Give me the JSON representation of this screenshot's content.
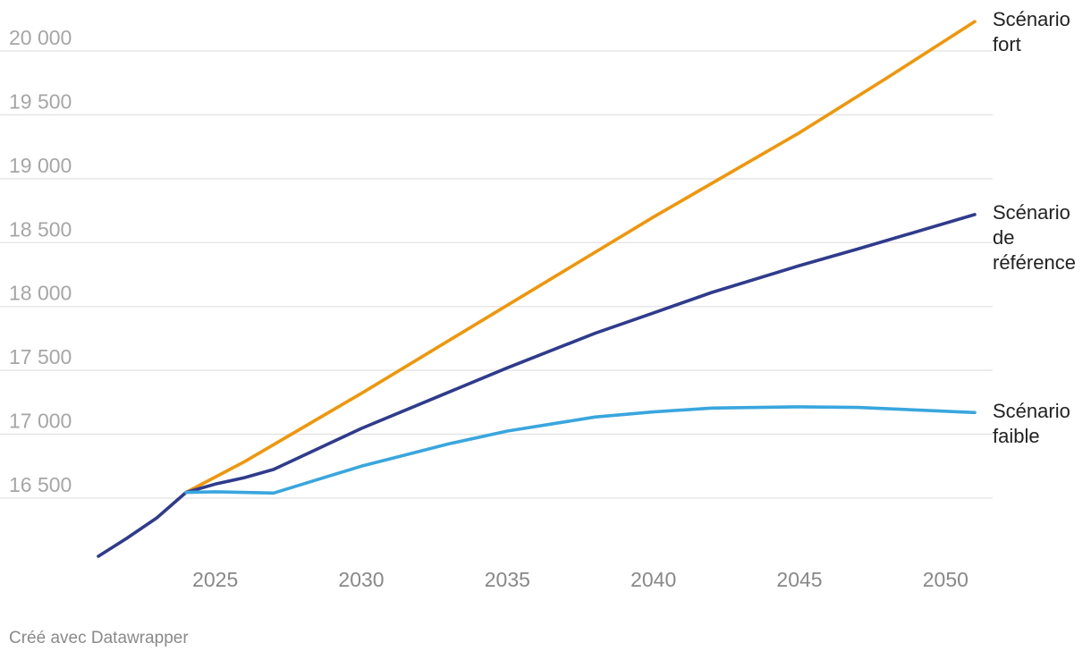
{
  "chart_data": {
    "type": "line",
    "title": "",
    "xlabel": "",
    "ylabel": "",
    "xlim": [
      2021,
      2051
    ],
    "ylim": [
      15950,
      20250
    ],
    "y_ticks": [
      16500,
      17000,
      17500,
      18000,
      18500,
      19000,
      19500,
      20000
    ],
    "y_tick_labels": [
      "16 500",
      "17 000",
      "17 500",
      "18 000",
      "18 500",
      "19 000",
      "19 500",
      "20 000"
    ],
    "x_ticks": [
      2025,
      2030,
      2035,
      2040,
      2045,
      2050
    ],
    "x_tick_labels": [
      "2025",
      "2030",
      "2035",
      "2040",
      "2045",
      "2050"
    ],
    "grid": true,
    "legend": "inline labels at line ends (right)",
    "series": [
      {
        "name": "Scénario fort",
        "label_lines": [
          "Scénario",
          "fort"
        ],
        "color": "#f0960a",
        "x": [
          2024,
          2026,
          2030,
          2035,
          2040,
          2045,
          2048,
          2051
        ],
        "y": [
          16545,
          16785,
          17320,
          18010,
          18700,
          19360,
          19790,
          20230
        ]
      },
      {
        "name": "Scénario de référence",
        "label_lines": [
          "Scénario",
          "de",
          "référence"
        ],
        "color": "#2f3b8c",
        "x": [
          2021,
          2022,
          2023,
          2024,
          2025,
          2026,
          2027,
          2030,
          2035,
          2038,
          2040,
          2042,
          2045,
          2047,
          2051
        ],
        "y": [
          16045,
          16190,
          16345,
          16545,
          16610,
          16660,
          16725,
          17045,
          17520,
          17790,
          17950,
          18110,
          18320,
          18450,
          18720
        ]
      },
      {
        "name": "Scénario faible",
        "label_lines": [
          "Scénario",
          "faible"
        ],
        "color": "#3aa6de",
        "x": [
          2024,
          2025,
          2027,
          2030,
          2033,
          2035,
          2038,
          2040,
          2042,
          2045,
          2047,
          2049,
          2051
        ],
        "y": [
          16545,
          16550,
          16540,
          16750,
          16925,
          17025,
          17135,
          17175,
          17205,
          17215,
          17210,
          17190,
          17170
        ]
      }
    ]
  },
  "footer": {
    "credit": "Créé avec Datawrapper"
  }
}
